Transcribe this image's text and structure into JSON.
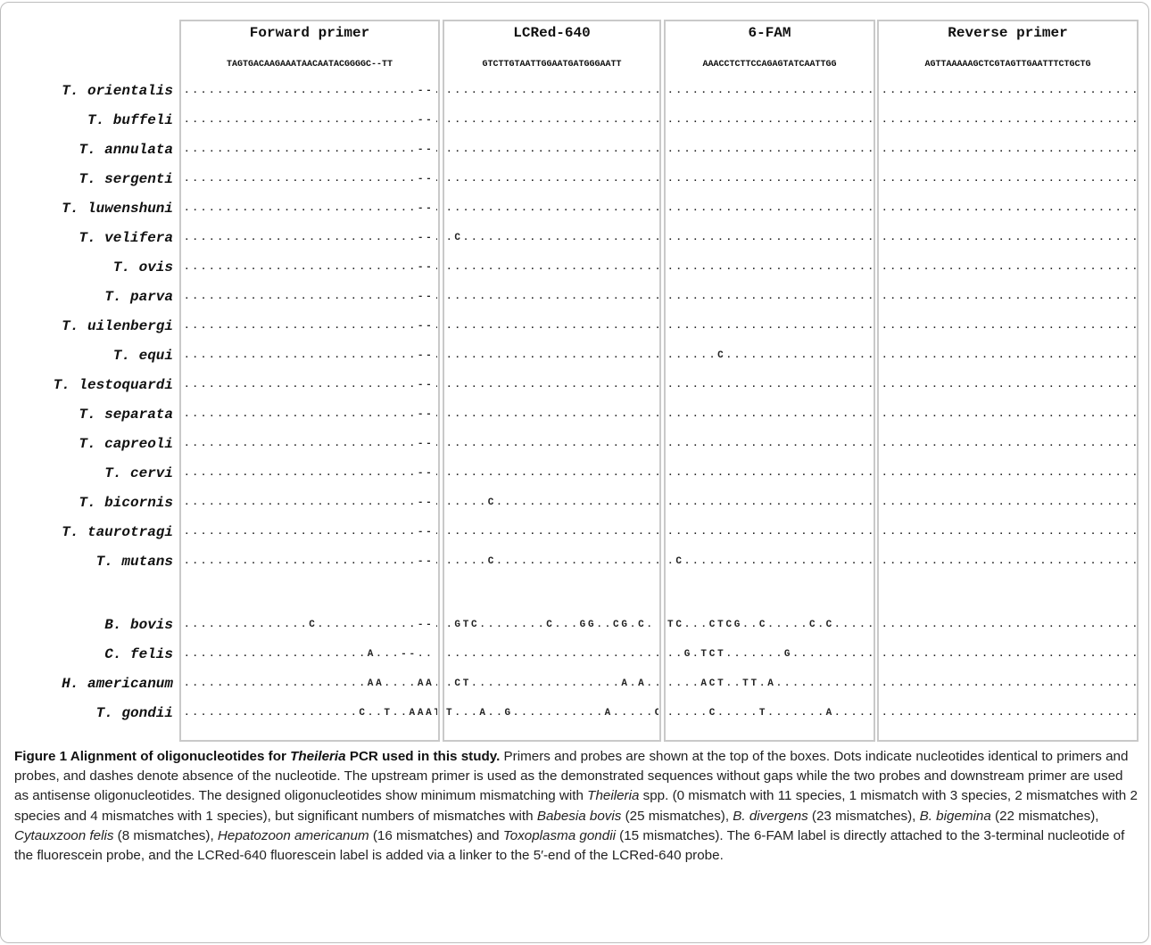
{
  "columns": [
    {
      "title": "Forward primer",
      "sequence": "TAGTGACAAGAAATAACAATACGGGGC--TT"
    },
    {
      "title": "LCRed-640",
      "sequence": "GTCTTGTAATTGGAATGATGGGAATT"
    },
    {
      "title": "6-FAM",
      "sequence": "AAACCTCTTCCAGAGTATCAATTGG"
    },
    {
      "title": "Reverse primer",
      "sequence": "AGTTAAAAAGCTCGTAGTTGAATTTCTGCTG"
    }
  ],
  "rows": [
    {
      "species": "T. orientalis",
      "seqs": [
        "............................--..",
        "...........................",
        "...........................",
        "........................................"
      ]
    },
    {
      "species": "T. buffeli",
      "seqs": [
        "............................--..",
        "...........................",
        "...........................",
        "........................................"
      ]
    },
    {
      "species": "T. annulata",
      "seqs": [
        "............................--..",
        "...........................",
        "...........................",
        "........................................"
      ]
    },
    {
      "species": "T. sergenti",
      "seqs": [
        "............................--..",
        "...........................",
        "...........................",
        "........................................"
      ]
    },
    {
      "species": "T. luwenshuni",
      "seqs": [
        "............................--..",
        "...........................",
        "...........................",
        "........................................"
      ]
    },
    {
      "species": "T. velifera",
      "seqs": [
        "............................--..",
        ".C.........................",
        "...........................",
        ".......................................A"
      ]
    },
    {
      "species": "T. ovis",
      "seqs": [
        "............................--..",
        "...........................",
        "...........................",
        "........................................"
      ]
    },
    {
      "species": "T. parva",
      "seqs": [
        "............................--..",
        "...........................",
        "...........................",
        "........................................"
      ]
    },
    {
      "species": "T. uilenbergi",
      "seqs": [
        "............................--..",
        "..........................C",
        "...........................",
        "......................................C."
      ]
    },
    {
      "species": "T. equi",
      "seqs": [
        "............................--..",
        "...........................",
        "......C....................",
        "........................................"
      ]
    },
    {
      "species": "T. lestoquardi",
      "seqs": [
        "............................--..",
        "...........................",
        "...........................",
        "........................................"
      ]
    },
    {
      "species": "T. separata",
      "seqs": [
        "............................--..",
        "...........................",
        "...........................",
        "...............................C........"
      ]
    },
    {
      "species": "T. capreoli",
      "seqs": [
        "............................--..",
        "...........................",
        "...........................",
        "........................................"
      ]
    },
    {
      "species": "T. cervi",
      "seqs": [
        "............................--..",
        "...........................",
        "...........................",
        "........................................"
      ]
    },
    {
      "species": "T. bicornis",
      "seqs": [
        "............................--..",
        ".....C.....................",
        "...........................",
        "........................................"
      ]
    },
    {
      "species": "T. taurotragi",
      "seqs": [
        "............................--..",
        "...........................",
        "...........................",
        "........................................"
      ]
    },
    {
      "species": "T. mutans",
      "seqs": [
        "............................--.C",
        ".....C.....................",
        ".C........................C",
        "........................................"
      ]
    },
    {
      "species": "B. bovis",
      "seqs": [
        "...............C............--.-",
        ".GTC........C...GG..CG.C.",
        "TC...CTCG..C.....C.C.....",
        "..................................C..ACG.C"
      ]
    },
    {
      "species": "C. felis",
      "seqs": [
        "......................A...--..",
        "..........................C..A....",
        "..G.TCT.......G...........",
        "........................................"
      ]
    },
    {
      "species": "H. americanum",
      "seqs": [
        "......................AA....AA..",
        ".CT..................A.A....",
        "....ACT..TT.A.............",
        ".......................................T.A"
      ]
    },
    {
      "species": "T. gondii",
      "seqs": [
        ".....................C..T..AAAT..",
        "T...A..G...........A.....C",
        ".....C.....T.......A.......",
        "...............................G........"
      ]
    }
  ],
  "caption": {
    "label": "Figure 1 Alignment of oligonucleotides for",
    "label_italic": "Theileria",
    "label_end": "PCR used in this study.",
    "text": [
      {
        "t": " Primers and probes are shown at the top of the boxes. Dots indicate nucleotides identical to primers and probes, and dashes denote absence of the nucleotide. The upstream primer is used as the demonstrated sequences without gaps while the two probes and downstream primer are used as antisense oligonucleotides. The designed oligonucleotides show minimum mismatching with ",
        "i": false
      },
      {
        "t": "Theileria",
        "i": true
      },
      {
        "t": " spp. (0 mismatch with 11 species, 1 mismatch with 3 species, 2 mismatches with 2 species and 4 mismatches with 1 species), but significant numbers of mismatches with ",
        "i": false
      },
      {
        "t": "Babesia bovis",
        "i": true
      },
      {
        "t": " (25 mismatches), ",
        "i": false
      },
      {
        "t": "B. divergens",
        "i": true
      },
      {
        "t": " (23 mismatches), ",
        "i": false
      },
      {
        "t": "B. bigemina",
        "i": true
      },
      {
        "t": " (22 mismatches), ",
        "i": false
      },
      {
        "t": "Cytauxzoon felis",
        "i": true
      },
      {
        "t": " (8 mismatches), ",
        "i": false
      },
      {
        "t": "Hepatozoon americanum",
        "i": true
      },
      {
        "t": " (16 mismatches) and ",
        "i": false
      },
      {
        "t": "Toxoplasma gondii",
        "i": true
      },
      {
        "t": " (15 mismatches). The 6-FAM label is directly attached to the 3-terminal nucleotide of the fluorescein probe, and the LCRed-640 fluorescein label is added via a linker to the 5′-end of the LCRed-640 probe.",
        "i": false
      }
    ]
  }
}
